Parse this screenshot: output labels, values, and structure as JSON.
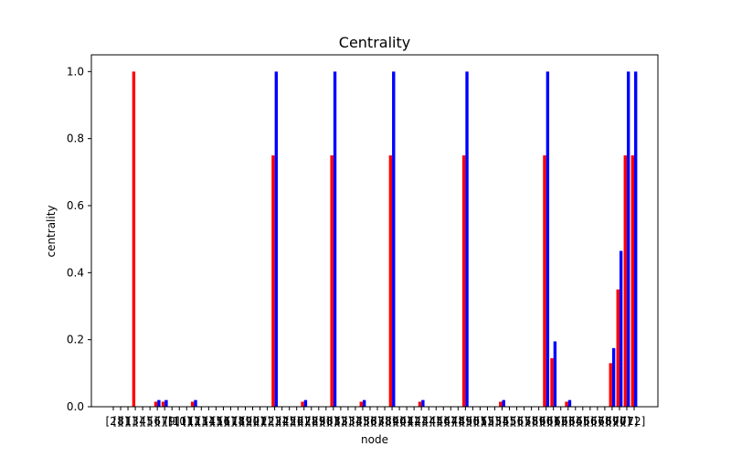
{
  "chart_data": {
    "type": "bar",
    "title": "Centrality",
    "xlabel": "node",
    "ylabel": "centrality",
    "ylim": [
      0,
      1.05
    ],
    "yticks": [
      "0.0",
      "0.2",
      "0.4",
      "0.6",
      "0.8",
      "1.0"
    ],
    "grid": false,
    "series_colors": [
      "#ff0000",
      "#0000ff"
    ],
    "categories": [
      "[2]",
      "[8]",
      "[1]",
      "[3]",
      "[4]",
      "[5]",
      "[6]",
      "[7]",
      "[9]",
      "[10]",
      "[11]",
      "[12]",
      "[13]",
      "[14]",
      "[15]",
      "[16]",
      "[17]",
      "[18]",
      "[19]",
      "[20]",
      "[21]",
      "[22]",
      "[23]",
      "[24]",
      "[25]",
      "[26]",
      "[27]",
      "[28]",
      "[29]",
      "[30]",
      "[31]",
      "[32]",
      "[33]",
      "[34]",
      "[35]",
      "[36]",
      "[37]",
      "[38]",
      "[39]",
      "[40]",
      "[41]",
      "[42]",
      "[43]",
      "[44]",
      "[45]",
      "[46]",
      "[47]",
      "[48]",
      "[49]",
      "[50]",
      "[51]",
      "[52]",
      "[53]",
      "[54]",
      "[55]",
      "[56]",
      "[57]",
      "[58]",
      "[59]",
      "[60]",
      "[61]",
      "[62]",
      "[63]",
      "[64]",
      "[65]",
      "[66]",
      "[67]",
      "[68]",
      "[69]",
      "[70]",
      "[71]",
      "[72]"
    ],
    "series": [
      {
        "values": [
          0,
          0,
          0,
          1.0,
          0,
          0,
          0.015,
          0.015,
          0,
          0,
          0,
          0.015,
          0,
          0,
          0,
          0,
          0,
          0,
          0,
          0,
          0,
          0,
          0.75,
          0,
          0,
          0,
          0.015,
          0,
          0,
          0,
          0.75,
          0,
          0,
          0,
          0.015,
          0,
          0,
          0,
          0.75,
          0,
          0,
          0,
          0.015,
          0,
          0,
          0,
          0,
          0,
          0.75,
          0,
          0,
          0,
          0,
          0.015,
          0,
          0,
          0,
          0,
          0,
          0.75,
          0.145,
          0,
          0.015,
          0,
          0,
          0,
          0,
          0,
          0.13,
          0.35,
          0.75,
          0.75
        ]
      },
      {
        "values": [
          0,
          0,
          0,
          0,
          0,
          0,
          0.02,
          0.02,
          0,
          0,
          0,
          0.02,
          0,
          0,
          0,
          0,
          0,
          0,
          0,
          0,
          0,
          0,
          1.0,
          0,
          0,
          0,
          0.02,
          0,
          0,
          0,
          1.0,
          0,
          0,
          0,
          0.02,
          0,
          0,
          0,
          1.0,
          0,
          0,
          0,
          0.02,
          0,
          0,
          0,
          0,
          0,
          1.0,
          0,
          0,
          0,
          0,
          0.02,
          0,
          0,
          0,
          0,
          0,
          1.0,
          0.195,
          0,
          0.02,
          0,
          0,
          0,
          0,
          0,
          0.175,
          0.465,
          1.0,
          1.0
        ]
      }
    ]
  }
}
